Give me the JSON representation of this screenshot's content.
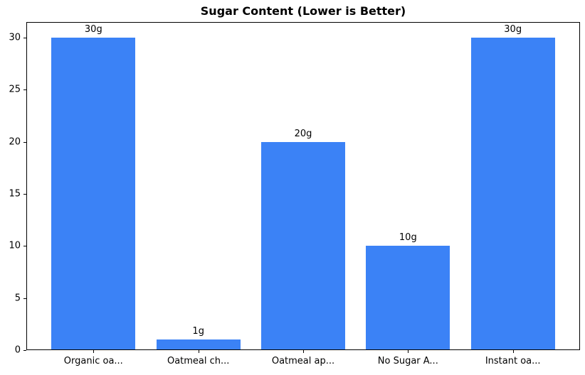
{
  "chart_data": {
    "type": "bar",
    "title": "Sugar Content (Lower is Better)",
    "categories": [
      "Organic oa...",
      "Oatmeal ch...",
      "Oatmeal ap...",
      "No Sugar A...",
      "Instant oa..."
    ],
    "values": [
      30,
      1,
      20,
      10,
      30
    ],
    "bar_labels": [
      "30g",
      "1g",
      "20g",
      "10g",
      "30g"
    ],
    "xlabel": "",
    "ylabel": "",
    "yticks": [
      0,
      5,
      10,
      15,
      20,
      25,
      30
    ],
    "ylim": [
      0,
      31.5
    ],
    "grid": false,
    "legend": null,
    "bar_color": "#3b82f6",
    "axis_color": "#000000",
    "background_color": "#ffffff"
  }
}
